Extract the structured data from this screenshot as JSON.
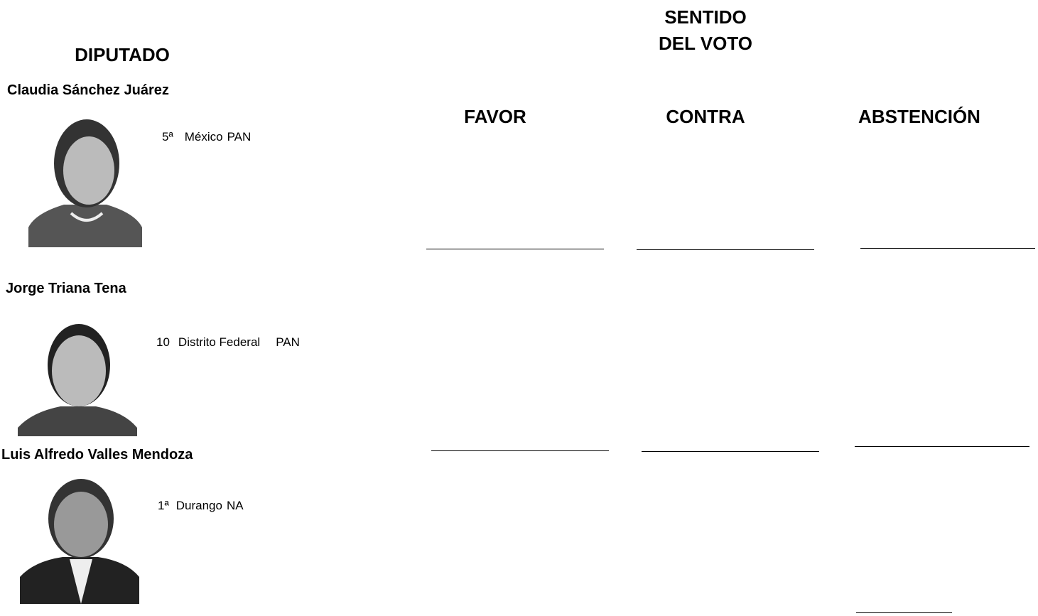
{
  "header": {
    "deputy_heading": "DIPUTADO",
    "vote_heading": [
      "SENTIDO",
      "DEL VOTO"
    ]
  },
  "columns": [
    "FAVOR",
    "CONTRA",
    "ABSTENCIÓN"
  ],
  "deputies": [
    {
      "name": "Claudia Sánchez Juárez",
      "district": "5ª",
      "state": "México",
      "party": "PAN"
    },
    {
      "name": "Jorge Triana Tena",
      "district": "10",
      "state": "Distrito Federal",
      "party": "PAN"
    },
    {
      "name": "Luis Alfredo Valles Mendoza",
      "district": "1ª",
      "state": "Durango",
      "party": "NA"
    }
  ]
}
